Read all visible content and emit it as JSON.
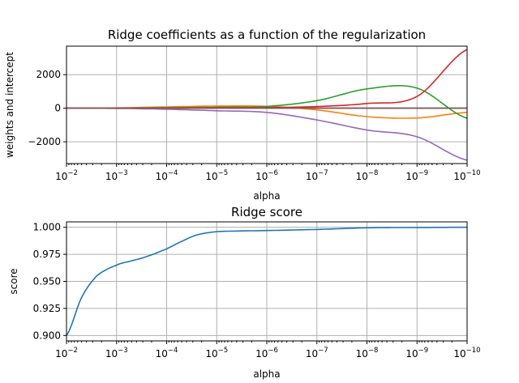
{
  "chart_data": [
    {
      "type": "line",
      "title": "Ridge coefficients as a function of the regularization",
      "xlabel": "alpha",
      "ylabel": "weights and intercept",
      "xscale": "log",
      "x_inverted": true,
      "xlim": [
        0.01,
        1e-10
      ],
      "ylim": [
        -3300,
        3700
      ],
      "grid": true,
      "x_ticks": [
        {
          "base": "10",
          "exp": "−2",
          "value": 0.01
        },
        {
          "base": "10",
          "exp": "−3",
          "value": 0.001
        },
        {
          "base": "10",
          "exp": "−4",
          "value": 0.0001
        },
        {
          "base": "10",
          "exp": "−5",
          "value": 1e-05
        },
        {
          "base": "10",
          "exp": "−6",
          "value": 1e-06
        },
        {
          "base": "10",
          "exp": "−7",
          "value": 1e-07
        },
        {
          "base": "10",
          "exp": "−8",
          "value": 1e-08
        },
        {
          "base": "10",
          "exp": "−9",
          "value": 1e-09
        },
        {
          "base": "10",
          "exp": "−10",
          "value": 1e-10
        }
      ],
      "y_ticks": [
        {
          "label": "2000",
          "value": 2000
        },
        {
          "label": "0",
          "value": 0
        },
        {
          "label": "−2000",
          "value": -2000
        }
      ],
      "x": [
        0.01,
        0.001,
        0.0001,
        1e-05,
        1e-06,
        1e-07,
        1e-08,
        1e-09,
        1e-10
      ],
      "series": [
        {
          "color": "#1f77b4",
          "values": [
            0,
            0,
            0,
            0,
            0,
            0,
            0,
            0,
            0
          ]
        },
        {
          "color": "#ff7f0e",
          "values": [
            0,
            20,
            80,
            130,
            110,
            -100,
            -500,
            -580,
            -250
          ]
        },
        {
          "color": "#2ca02c",
          "values": [
            0,
            10,
            30,
            60,
            110,
            450,
            1150,
            1200,
            -600
          ]
        },
        {
          "color": "#d62728",
          "values": [
            0,
            0,
            10,
            30,
            40,
            100,
            280,
            700,
            3500
          ]
        },
        {
          "color": "#9467bd",
          "values": [
            0,
            -10,
            -60,
            -150,
            -250,
            -700,
            -1300,
            -1700,
            -3100
          ]
        },
        {
          "color": "#8c564b",
          "values": [
            0,
            0,
            0,
            0,
            0,
            0,
            0,
            0,
            0
          ]
        }
      ]
    },
    {
      "type": "line",
      "title": "Ridge score",
      "xlabel": "alpha",
      "ylabel": "score",
      "xscale": "log",
      "x_inverted": true,
      "xlim": [
        0.01,
        1e-10
      ],
      "ylim": [
        0.895,
        1.005
      ],
      "grid": true,
      "x_ticks": [
        {
          "base": "10",
          "exp": "−2",
          "value": 0.01
        },
        {
          "base": "10",
          "exp": "−3",
          "value": 0.001
        },
        {
          "base": "10",
          "exp": "−4",
          "value": 0.0001
        },
        {
          "base": "10",
          "exp": "−5",
          "value": 1e-05
        },
        {
          "base": "10",
          "exp": "−6",
          "value": 1e-06
        },
        {
          "base": "10",
          "exp": "−7",
          "value": 1e-07
        },
        {
          "base": "10",
          "exp": "−8",
          "value": 1e-08
        },
        {
          "base": "10",
          "exp": "−9",
          "value": 1e-09
        },
        {
          "base": "10",
          "exp": "−10",
          "value": 1e-10
        }
      ],
      "y_ticks": [
        {
          "label": "1.000",
          "value": 1.0
        },
        {
          "label": "0.975",
          "value": 0.975
        },
        {
          "label": "0.950",
          "value": 0.95
        },
        {
          "label": "0.925",
          "value": 0.925
        },
        {
          "label": "0.900",
          "value": 0.9
        }
      ],
      "x": [
        0.01,
        0.005,
        0.0025,
        0.001,
        0.0005,
        0.00025,
        0.0001,
        5e-05,
        2.5e-05,
        1e-05,
        1e-06,
        1e-07,
        1e-08,
        1e-09,
        1e-10
      ],
      "series": [
        {
          "color": "#1f77b4",
          "values": [
            0.9,
            0.935,
            0.955,
            0.965,
            0.969,
            0.973,
            0.98,
            0.987,
            0.993,
            0.996,
            0.997,
            0.998,
            0.9995,
            0.9998,
            1.0
          ]
        }
      ]
    }
  ]
}
